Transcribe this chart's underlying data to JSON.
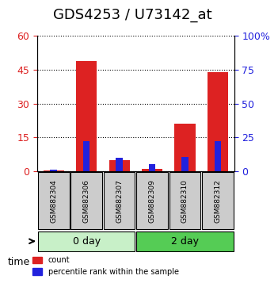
{
  "title": "GDS4253 / U73142_at",
  "samples": [
    "GSM882304",
    "GSM882306",
    "GSM882307",
    "GSM882309",
    "GSM882310",
    "GSM882312"
  ],
  "count_values": [
    0.3,
    49.0,
    5.0,
    1.0,
    21.0,
    44.0
  ],
  "percentile_values": [
    1.0,
    22.0,
    10.0,
    5.0,
    10.5,
    22.0
  ],
  "left_ylim": [
    0,
    60
  ],
  "right_ylim": [
    0,
    100
  ],
  "left_yticks": [
    0,
    15,
    30,
    45,
    60
  ],
  "right_yticks": [
    0,
    25,
    50,
    75,
    100
  ],
  "right_yticklabels": [
    "0",
    "25",
    "50",
    "75",
    "100%"
  ],
  "left_yticklabels": [
    "0",
    "15",
    "30",
    "45",
    "60"
  ],
  "bar_width": 0.35,
  "group_labels": [
    "0 day",
    "2 day"
  ],
  "group_ranges": [
    [
      0,
      2
    ],
    [
      3,
      5
    ]
  ],
  "group_colors_light": [
    "#c8f0c8",
    "#55cc55"
  ],
  "time_label": "time",
  "legend_entries": [
    "count",
    "percentile rank within the sample"
  ],
  "count_color": "#dd2222",
  "percentile_color": "#2222dd",
  "bg_color": "#ffffff",
  "plot_bg": "#ffffff",
  "grid_color": "#000000",
  "sample_box_color": "#cccccc",
  "title_fontsize": 13,
  "tick_fontsize": 9,
  "label_fontsize": 9
}
